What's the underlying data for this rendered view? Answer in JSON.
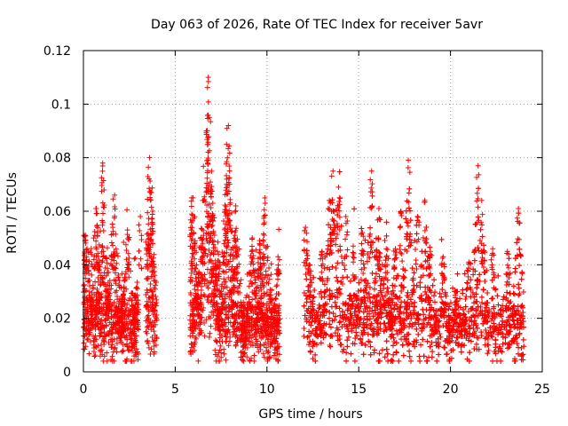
{
  "chart_data": {
    "type": "scatter",
    "title": "Day 063 of 2026, Rate Of TEC Index for receiver 5avr",
    "xlabel": "GPS time / hours",
    "ylabel": "ROTI / TECUs",
    "xlim": [
      0,
      25
    ],
    "ylim": [
      0,
      0.12
    ],
    "xticks": [
      0,
      5,
      10,
      15,
      20,
      25
    ],
    "yticks": [
      0,
      0.02,
      0.04,
      0.06,
      0.08,
      0.1,
      0.12
    ],
    "xtick_labels": [
      "0",
      "5",
      "10",
      "15",
      "20",
      "25"
    ],
    "ytick_labels": [
      "0",
      "0.02",
      "0.04",
      "0.06",
      "0.08",
      "0.1",
      "0.12"
    ],
    "grid": true,
    "marker": "+",
    "color": "#ff0000",
    "series": [
      {
        "name": "ROTI",
        "segments": [
          [
            0.0,
            3.0
          ],
          [
            3.4,
            4.0
          ],
          [
            5.8,
            10.7
          ],
          [
            12.0,
            24.0
          ]
        ],
        "baseline": 0.015,
        "spread": 0.006,
        "peaks": [
          {
            "x": 0.1,
            "y": 0.051
          },
          {
            "x": 0.2,
            "y": 0.046
          },
          {
            "x": 0.7,
            "y": 0.061
          },
          {
            "x": 1.05,
            "y": 0.078
          },
          {
            "x": 1.7,
            "y": 0.066
          },
          {
            "x": 1.6,
            "y": 0.054
          },
          {
            "x": 2.4,
            "y": 0.053
          },
          {
            "x": 3.1,
            "y": 0.058
          },
          {
            "x": 3.6,
            "y": 0.08
          },
          {
            "x": 3.7,
            "y": 0.067
          },
          {
            "x": 5.9,
            "y": 0.065
          },
          {
            "x": 6.0,
            "y": 0.052
          },
          {
            "x": 6.5,
            "y": 0.064
          },
          {
            "x": 6.7,
            "y": 0.09
          },
          {
            "x": 6.8,
            "y": 0.11
          },
          {
            "x": 6.85,
            "y": 0.095
          },
          {
            "x": 7.05,
            "y": 0.063
          },
          {
            "x": 7.3,
            "y": 0.045
          },
          {
            "x": 7.8,
            "y": 0.085
          },
          {
            "x": 7.9,
            "y": 0.092
          },
          {
            "x": 8.3,
            "y": 0.062
          },
          {
            "x": 9.2,
            "y": 0.05
          },
          {
            "x": 9.6,
            "y": 0.049
          },
          {
            "x": 9.9,
            "y": 0.063
          },
          {
            "x": 10.6,
            "y": 0.043
          },
          {
            "x": 12.1,
            "y": 0.054
          },
          {
            "x": 12.3,
            "y": 0.04
          },
          {
            "x": 13.0,
            "y": 0.045
          },
          {
            "x": 13.4,
            "y": 0.064
          },
          {
            "x": 13.6,
            "y": 0.075
          },
          {
            "x": 13.9,
            "y": 0.069
          },
          {
            "x": 14.3,
            "y": 0.058
          },
          {
            "x": 14.7,
            "y": 0.047
          },
          {
            "x": 15.2,
            "y": 0.052
          },
          {
            "x": 15.7,
            "y": 0.075
          },
          {
            "x": 16.1,
            "y": 0.061
          },
          {
            "x": 16.5,
            "y": 0.046
          },
          {
            "x": 17.0,
            "y": 0.046
          },
          {
            "x": 17.3,
            "y": 0.06
          },
          {
            "x": 17.7,
            "y": 0.079
          },
          {
            "x": 18.2,
            "y": 0.058
          },
          {
            "x": 18.6,
            "y": 0.064
          },
          {
            "x": 18.9,
            "y": 0.045
          },
          {
            "x": 19.6,
            "y": 0.043
          },
          {
            "x": 20.3,
            "y": 0.03
          },
          {
            "x": 21.0,
            "y": 0.041
          },
          {
            "x": 21.5,
            "y": 0.077
          },
          {
            "x": 21.7,
            "y": 0.064
          },
          {
            "x": 22.3,
            "y": 0.046
          },
          {
            "x": 23.1,
            "y": 0.045
          },
          {
            "x": 23.7,
            "y": 0.061
          }
        ]
      }
    ]
  }
}
